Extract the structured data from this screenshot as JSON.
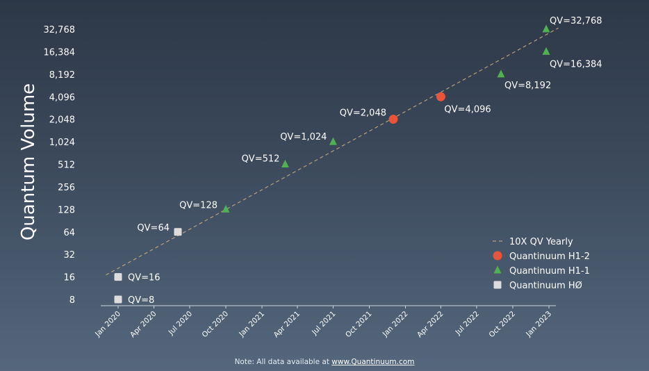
{
  "chart_data": {
    "type": "scatter",
    "ylabel": "Quantum Volume",
    "yscale": "log2",
    "ylim": [
      8,
      32768
    ],
    "yticks": [
      "8",
      "16",
      "32",
      "64",
      "128",
      "256",
      "512",
      "1,024",
      "2,048",
      "4,096",
      "8,192",
      "16,384",
      "32,768"
    ],
    "xlim": [
      "2019-11-15",
      "2023-02-15"
    ],
    "xticks": [
      "Jan 2020",
      "Apr 2020",
      "Jul 2020",
      "Oct 2020",
      "Jan 2021",
      "Apr 2021",
      "Jul 2021",
      "Oct 2021",
      "Jan 2022",
      "Apr 2022",
      "Jul 2022",
      "Oct 2022",
      "Jan 2023"
    ],
    "series": [
      {
        "name": "10X QV Yearly",
        "type": "line",
        "style": "dashed",
        "color": "#b8a07e",
        "points": [
          {
            "x": "2019-12-01",
            "y": 17
          },
          {
            "x": "2023-01-25",
            "y": 34000
          }
        ]
      },
      {
        "name": "Quantinuum H1-2",
        "type": "scatter",
        "marker": "circle",
        "color": "#e8553a",
        "points": [
          {
            "x": "2021-12-01",
            "y": 2048,
            "label": "QV=2,048"
          },
          {
            "x": "2022-04-01",
            "y": 4096,
            "label": "QV=4,096"
          }
        ]
      },
      {
        "name": "Quantinuum H1-1",
        "type": "scatter",
        "marker": "triangle",
        "color": "#4fb14f",
        "points": [
          {
            "x": "2020-10-01",
            "y": 128,
            "label": "QV=128"
          },
          {
            "x": "2021-03-01",
            "y": 512,
            "label": "QV=512"
          },
          {
            "x": "2021-07-01",
            "y": 1024,
            "label": "QV=1,024"
          },
          {
            "x": "2022-09-01",
            "y": 8192,
            "label": "QV=8,192"
          },
          {
            "x": "2022-12-25",
            "y": 16384,
            "label": "QV=16,384"
          },
          {
            "x": "2022-12-25",
            "y": 32768,
            "label": "QV=32,768"
          }
        ]
      },
      {
        "name": "Quantinuum HØ",
        "type": "scatter",
        "marker": "square",
        "color": "#dcdcdc",
        "points": [
          {
            "x": "2020-01-01",
            "y": 8,
            "label": "QV=8"
          },
          {
            "x": "2020-01-01",
            "y": 16,
            "label": "QV=16"
          },
          {
            "x": "2020-06-01",
            "y": 64,
            "label": "QV=64"
          }
        ]
      }
    ],
    "legend_position": "bottom-right"
  },
  "note": {
    "prefix": "Note: All data available at ",
    "link": "www.Quantinuum.com"
  }
}
